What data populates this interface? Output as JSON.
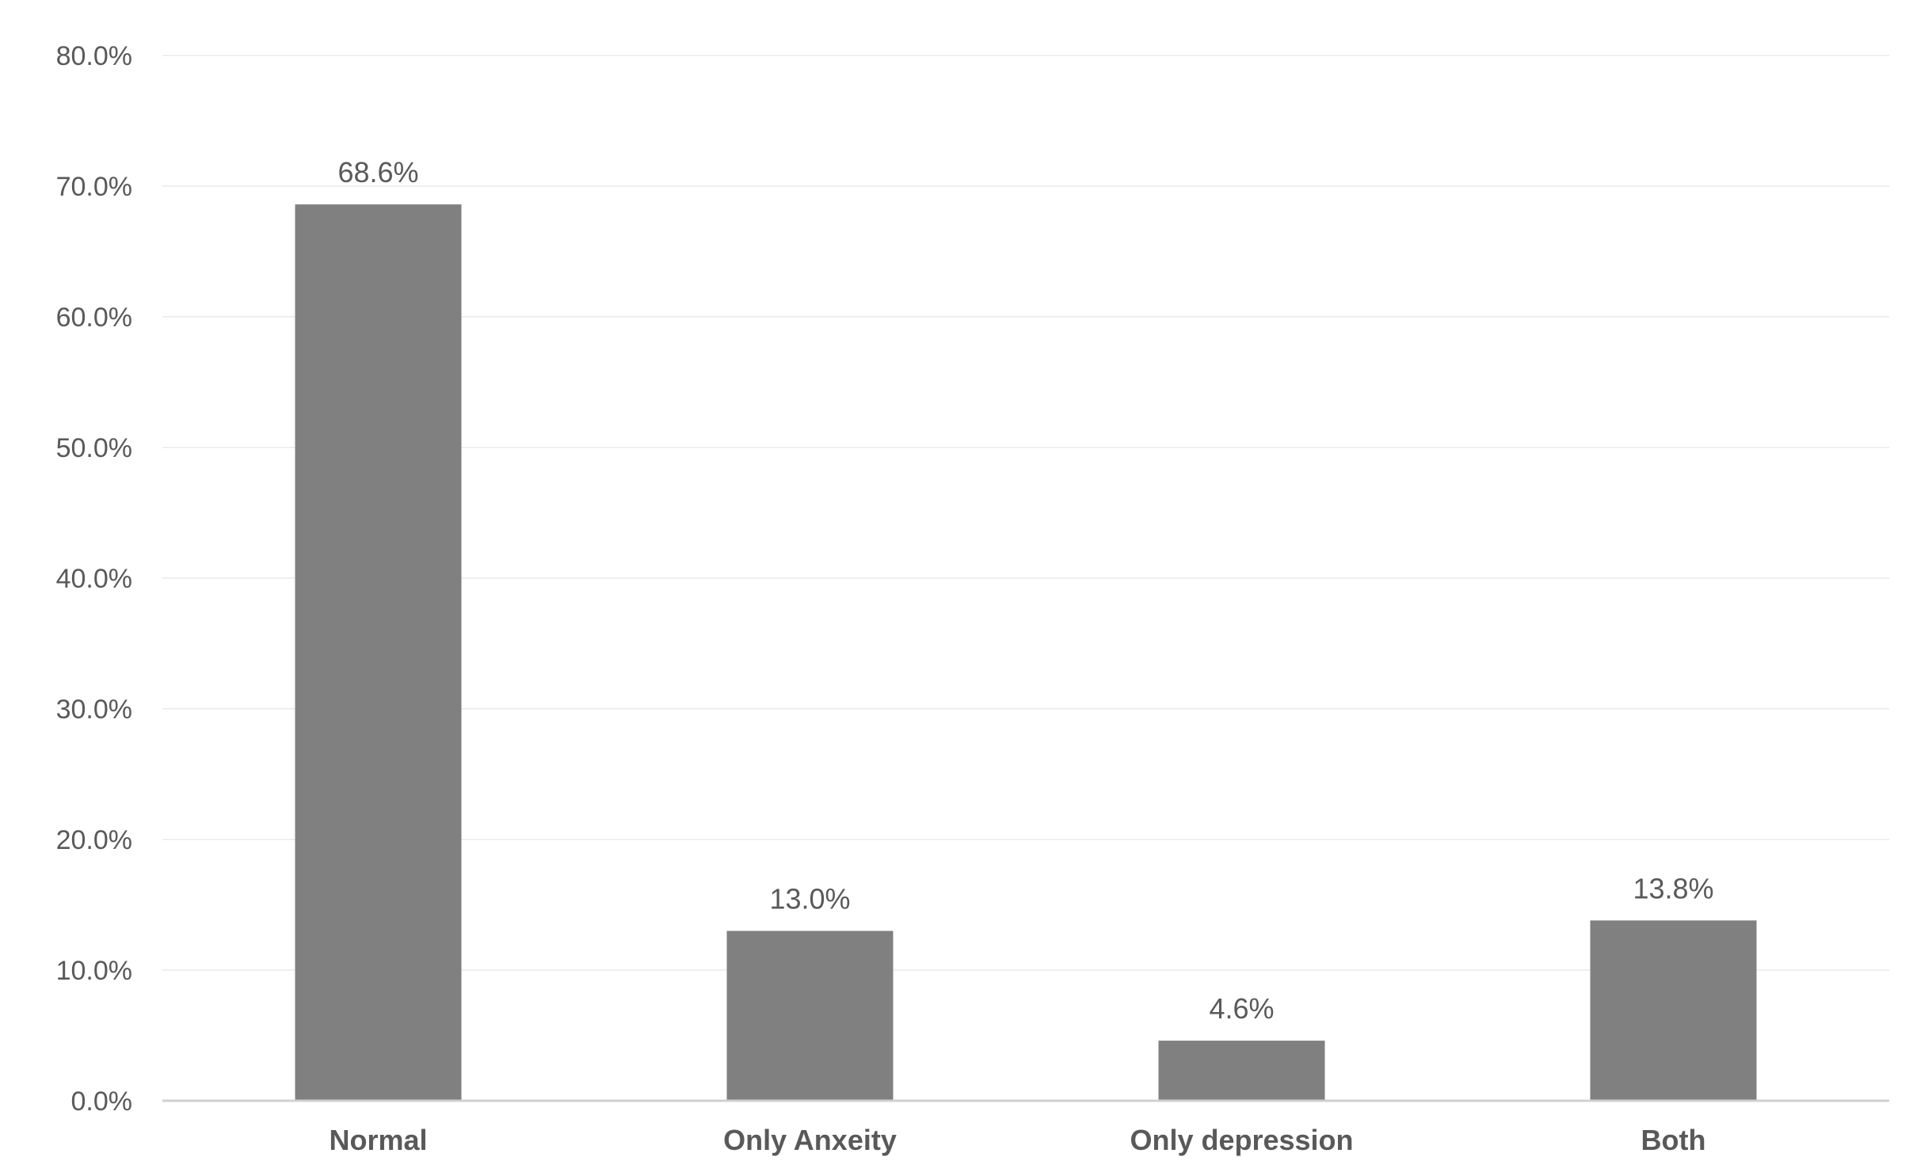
{
  "chart_data": {
    "type": "bar",
    "categories": [
      "Normal",
      "Only Anxeity",
      "Only depression",
      "Both"
    ],
    "values": [
      68.6,
      13.0,
      4.6,
      13.8
    ],
    "data_labels": [
      "68.6%",
      "13.0%",
      "4.6%",
      "13.8%"
    ],
    "title": "",
    "xlabel": "",
    "ylabel": "",
    "ylim": [
      0,
      80
    ],
    "y_ticks": [
      0,
      10,
      20,
      30,
      40,
      50,
      60,
      70,
      80
    ],
    "y_tick_labels": [
      "0.0%",
      "10.0%",
      "20.0%",
      "30.0%",
      "40.0%",
      "50.0%",
      "60.0%",
      "70.0%",
      "80.0%"
    ],
    "grid": true,
    "legend": "none",
    "colors": {
      "bar": "#808080",
      "axis": "#d0d0d0",
      "grid": "#efefef",
      "text": "#595959"
    }
  }
}
